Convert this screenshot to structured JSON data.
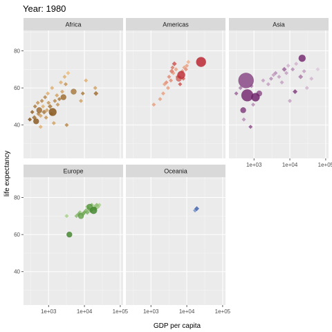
{
  "chart_data": {
    "type": "scatter",
    "title": "Year: 1980",
    "xlabel": "GDP per capita",
    "ylabel": "life expectancy",
    "x_scale": "log10",
    "xlim": [
      200,
      120000
    ],
    "ylim": [
      22,
      91
    ],
    "x_ticks": [
      {
        "value": 1000,
        "label": "1e+03"
      },
      {
        "value": 10000,
        "label": "1e+04"
      },
      {
        "value": 100000,
        "label": "1e+05"
      }
    ],
    "y_ticks": [
      {
        "value": 40,
        "label": "40"
      },
      {
        "value": 60,
        "label": "60"
      },
      {
        "value": 80,
        "label": "80"
      }
    ],
    "grid": true,
    "legend": "none",
    "facets": [
      {
        "name": "Africa",
        "color_dark": "#7a4a10",
        "color_light": "#f7c98a",
        "points": [
          {
            "x": 300,
            "y": 43,
            "size": 3,
            "shade": 0.9
          },
          {
            "x": 350,
            "y": 47,
            "size": 3,
            "shade": 0.8
          },
          {
            "x": 400,
            "y": 44,
            "size": 3.5,
            "shade": 0.7
          },
          {
            "x": 420,
            "y": 50,
            "size": 3,
            "shade": 0.6
          },
          {
            "x": 450,
            "y": 42,
            "size": 4,
            "shade": 0.85
          },
          {
            "x": 500,
            "y": 52,
            "size": 3,
            "shade": 0.4
          },
          {
            "x": 520,
            "y": 46,
            "size": 3,
            "shade": 0.5
          },
          {
            "x": 550,
            "y": 48,
            "size": 4,
            "shade": 0.7
          },
          {
            "x": 600,
            "y": 45,
            "size": 3,
            "shade": 0.3
          },
          {
            "x": 600,
            "y": 39,
            "size": 3,
            "shade": 0.2
          },
          {
            "x": 650,
            "y": 53,
            "size": 3,
            "shade": 0.5
          },
          {
            "x": 700,
            "y": 50,
            "size": 3,
            "shade": 0.2
          },
          {
            "x": 750,
            "y": 47,
            "size": 3.5,
            "shade": 0.6
          },
          {
            "x": 800,
            "y": 55,
            "size": 3,
            "shade": 0.5
          },
          {
            "x": 850,
            "y": 44,
            "size": 3,
            "shade": 0.4
          },
          {
            "x": 900,
            "y": 48,
            "size": 3,
            "shade": 0.3
          },
          {
            "x": 950,
            "y": 57,
            "size": 3,
            "shade": 0.2
          },
          {
            "x": 1000,
            "y": 52,
            "size": 3,
            "shade": 0.4
          },
          {
            "x": 1100,
            "y": 50,
            "size": 3.5,
            "shade": 0.6
          },
          {
            "x": 1200,
            "y": 46,
            "size": 3,
            "shade": 0.3
          },
          {
            "x": 1250,
            "y": 60,
            "size": 3,
            "shade": 0.2
          },
          {
            "x": 1300,
            "y": 47,
            "size": 5.5,
            "shade": 0.9
          },
          {
            "x": 1400,
            "y": 41,
            "size": 3,
            "shade": 0.3
          },
          {
            "x": 1500,
            "y": 53,
            "size": 3,
            "shade": 0.5
          },
          {
            "x": 1700,
            "y": 56,
            "size": 3,
            "shade": 0.3
          },
          {
            "x": 1800,
            "y": 51,
            "size": 3,
            "shade": 0.4
          },
          {
            "x": 2000,
            "y": 54,
            "size": 3,
            "shade": 0.6
          },
          {
            "x": 2200,
            "y": 63,
            "size": 3,
            "shade": 0.2
          },
          {
            "x": 2400,
            "y": 58,
            "size": 3,
            "shade": 0.3
          },
          {
            "x": 2600,
            "y": 55,
            "size": 4,
            "shade": 0.7
          },
          {
            "x": 2800,
            "y": 66,
            "size": 3,
            "shade": 0.2
          },
          {
            "x": 3000,
            "y": 62,
            "size": 3,
            "shade": 0.4
          },
          {
            "x": 3200,
            "y": 40,
            "size": 3,
            "shade": 0.5
          },
          {
            "x": 3500,
            "y": 68,
            "size": 3,
            "shade": 0.1
          },
          {
            "x": 5000,
            "y": 58,
            "size": 4,
            "shade": 0.6
          },
          {
            "x": 8000,
            "y": 53,
            "size": 3,
            "shade": 0.3
          },
          {
            "x": 9000,
            "y": 57,
            "size": 3,
            "shade": 0.6
          },
          {
            "x": 11000,
            "y": 64,
            "size": 3,
            "shade": 0.2
          },
          {
            "x": 20000,
            "y": 60,
            "size": 3,
            "shade": 0.3
          },
          {
            "x": 21000,
            "y": 57,
            "size": 3.5,
            "shade": 0.7
          }
        ]
      },
      {
        "name": "Americas",
        "color_dark": "#b81f2e",
        "color_light": "#fbd8a8",
        "points": [
          {
            "x": 1200,
            "y": 51,
            "size": 3,
            "shade": 0.3
          },
          {
            "x": 1800,
            "y": 54,
            "size": 3,
            "shade": 0.3
          },
          {
            "x": 2200,
            "y": 57,
            "size": 3,
            "shade": 0.3
          },
          {
            "x": 2400,
            "y": 62,
            "size": 3,
            "shade": 0.3
          },
          {
            "x": 2700,
            "y": 63,
            "size": 3,
            "shade": 0.4
          },
          {
            "x": 3000,
            "y": 60,
            "size": 3,
            "shade": 0.3
          },
          {
            "x": 3200,
            "y": 66,
            "size": 3,
            "shade": 0.4
          },
          {
            "x": 3600,
            "y": 64,
            "size": 3,
            "shade": 0.4
          },
          {
            "x": 3800,
            "y": 69,
            "size": 3.5,
            "shade": 0.5
          },
          {
            "x": 4000,
            "y": 71,
            "size": 3,
            "shade": 0.5
          },
          {
            "x": 4200,
            "y": 68,
            "size": 3,
            "shade": 0.3
          },
          {
            "x": 4500,
            "y": 73,
            "size": 3.5,
            "shade": 0.7
          },
          {
            "x": 5000,
            "y": 70,
            "size": 3,
            "shade": 0.3
          },
          {
            "x": 5500,
            "y": 66,
            "size": 3,
            "shade": 0.5
          },
          {
            "x": 6000,
            "y": 65,
            "size": 4,
            "shade": 0.6
          },
          {
            "x": 6500,
            "y": 62,
            "size": 3,
            "shade": 0.7
          },
          {
            "x": 7000,
            "y": 67,
            "size": 5.5,
            "shade": 0.9
          },
          {
            "x": 7500,
            "y": 69,
            "size": 3,
            "shade": 0.4
          },
          {
            "x": 8000,
            "y": 65,
            "size": 3,
            "shade": 0.6
          },
          {
            "x": 8500,
            "y": 71,
            "size": 3,
            "shade": 0.3
          },
          {
            "x": 9500,
            "y": 70,
            "size": 3,
            "shade": 0.4
          },
          {
            "x": 10000,
            "y": 72,
            "size": 3,
            "shade": 0.3
          },
          {
            "x": 11000,
            "y": 74,
            "size": 3,
            "shade": 0.2
          },
          {
            "x": 25000,
            "y": 74,
            "size": 7,
            "shade": 0.95
          }
        ]
      },
      {
        "name": "Asia",
        "color_dark": "#6b1a66",
        "color_light": "#eadbe9",
        "points": [
          {
            "x": 320,
            "y": 57,
            "size": 3,
            "shade": 0.6
          },
          {
            "x": 420,
            "y": 60,
            "size": 3,
            "shade": 0.5
          },
          {
            "x": 500,
            "y": 48,
            "size": 4,
            "shade": 0.8
          },
          {
            "x": 520,
            "y": 43,
            "size": 3,
            "shade": 0.4
          },
          {
            "x": 600,
            "y": 64,
            "size": 11,
            "shade": 0.75
          },
          {
            "x": 650,
            "y": 56,
            "size": 8.5,
            "shade": 0.9
          },
          {
            "x": 800,
            "y": 39,
            "size": 3,
            "shade": 0.7
          },
          {
            "x": 850,
            "y": 61,
            "size": 3,
            "shade": 0.5
          },
          {
            "x": 950,
            "y": 51,
            "size": 3,
            "shade": 0.4
          },
          {
            "x": 1100,
            "y": 55,
            "size": 6,
            "shade": 0.95
          },
          {
            "x": 1400,
            "y": 57,
            "size": 4,
            "shade": 0.7
          },
          {
            "x": 1800,
            "y": 64,
            "size": 3,
            "shade": 0.3
          },
          {
            "x": 2500,
            "y": 62,
            "size": 3,
            "shade": 0.3
          },
          {
            "x": 3000,
            "y": 65,
            "size": 3,
            "shade": 0.4
          },
          {
            "x": 3500,
            "y": 67,
            "size": 3,
            "shade": 0.3
          },
          {
            "x": 4000,
            "y": 68,
            "size": 3,
            "shade": 0.4
          },
          {
            "x": 5000,
            "y": 66,
            "size": 3,
            "shade": 0.3
          },
          {
            "x": 6000,
            "y": 63,
            "size": 3,
            "shade": 0.3
          },
          {
            "x": 7000,
            "y": 70,
            "size": 3.5,
            "shade": 0.6
          },
          {
            "x": 8000,
            "y": 68,
            "size": 3,
            "shade": 0.3
          },
          {
            "x": 9000,
            "y": 72,
            "size": 3,
            "shade": 0.2
          },
          {
            "x": 10000,
            "y": 53,
            "size": 3,
            "shade": 0.3
          },
          {
            "x": 12000,
            "y": 70,
            "size": 3,
            "shade": 0.4
          },
          {
            "x": 14000,
            "y": 58,
            "size": 3.5,
            "shade": 0.8
          },
          {
            "x": 15000,
            "y": 73,
            "size": 3,
            "shade": 0.2
          },
          {
            "x": 20000,
            "y": 66,
            "size": 3.5,
            "shade": 0.5
          },
          {
            "x": 22000,
            "y": 76,
            "size": 5,
            "shade": 0.9
          },
          {
            "x": 25000,
            "y": 69,
            "size": 3,
            "shade": 0.3
          },
          {
            "x": 30000,
            "y": 60,
            "size": 3,
            "shade": 0.2
          },
          {
            "x": 40000,
            "y": 65,
            "size": 3,
            "shade": 0.2
          },
          {
            "x": 60000,
            "y": 70,
            "size": 3,
            "shade": 0.1
          }
        ]
      },
      {
        "name": "Europe",
        "color_dark": "#2f7a1c",
        "color_light": "#c7e7a7",
        "points": [
          {
            "x": 3200,
            "y": 70,
            "size": 3,
            "shade": 0.2
          },
          {
            "x": 3800,
            "y": 60,
            "size": 4,
            "shade": 0.85
          },
          {
            "x": 6000,
            "y": 70,
            "size": 3,
            "shade": 0.4
          },
          {
            "x": 7000,
            "y": 71,
            "size": 3.5,
            "shade": 0.5
          },
          {
            "x": 7500,
            "y": 72,
            "size": 3,
            "shade": 0.3
          },
          {
            "x": 8000,
            "y": 70,
            "size": 4,
            "shade": 0.6
          },
          {
            "x": 9000,
            "y": 71,
            "size": 3.5,
            "shade": 0.5
          },
          {
            "x": 10000,
            "y": 72,
            "size": 3,
            "shade": 0.6
          },
          {
            "x": 11000,
            "y": 73,
            "size": 3,
            "shade": 0.4
          },
          {
            "x": 12000,
            "y": 72,
            "size": 3.5,
            "shade": 0.5
          },
          {
            "x": 12000,
            "y": 75,
            "size": 3,
            "shade": 0.3
          },
          {
            "x": 13000,
            "y": 74,
            "size": 3,
            "shade": 0.5
          },
          {
            "x": 14000,
            "y": 75,
            "size": 4,
            "shade": 0.7
          },
          {
            "x": 15000,
            "y": 73,
            "size": 3.5,
            "shade": 0.6
          },
          {
            "x": 16000,
            "y": 76,
            "size": 3,
            "shade": 0.4
          },
          {
            "x": 17000,
            "y": 74,
            "size": 3,
            "shade": 0.5
          },
          {
            "x": 18000,
            "y": 73,
            "size": 5,
            "shade": 0.85
          },
          {
            "x": 19000,
            "y": 75,
            "size": 3,
            "shade": 0.3
          },
          {
            "x": 20000,
            "y": 74,
            "size": 3.5,
            "shade": 0.6
          },
          {
            "x": 22000,
            "y": 76,
            "size": 3,
            "shade": 0.4
          },
          {
            "x": 24000,
            "y": 75,
            "size": 3,
            "shade": 0.3
          },
          {
            "x": 26000,
            "y": 76,
            "size": 3,
            "shade": 0.2
          }
        ]
      },
      {
        "name": "Oceania",
        "color_dark": "#2d4fa0",
        "color_light": "#a9c1e8",
        "points": [
          {
            "x": 17000,
            "y": 73,
            "size": 3,
            "shade": 0.4
          },
          {
            "x": 19000,
            "y": 74,
            "size": 3.5,
            "shade": 0.8
          }
        ]
      }
    ]
  }
}
